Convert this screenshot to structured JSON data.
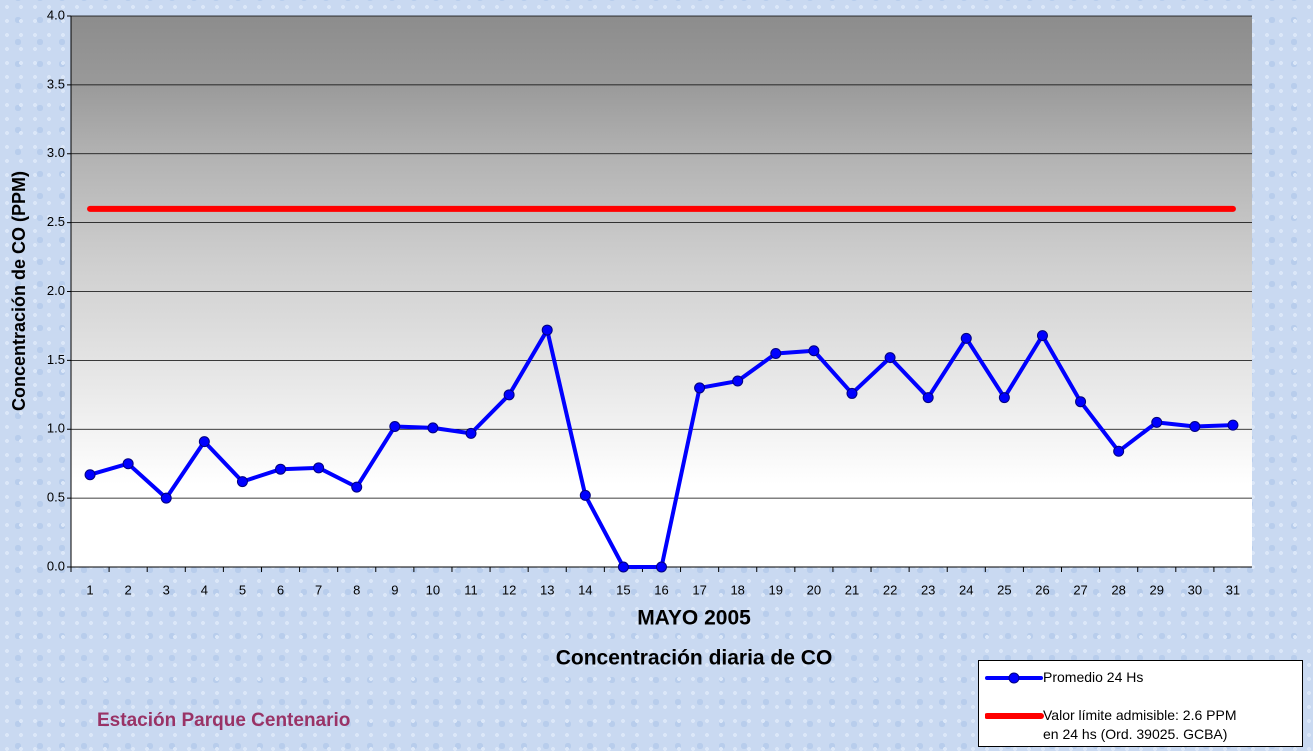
{
  "chart_data": {
    "type": "line",
    "title": "MAYO 2005",
    "subtitle": "Concentración diaria de CO",
    "y_label": "Concentración de CO (PPM)",
    "footer": "Estación Parque Centenario",
    "categories": [
      "1",
      "2",
      "3",
      "4",
      "5",
      "6",
      "7",
      "8",
      "9",
      "10",
      "11",
      "12",
      "13",
      "14",
      "15",
      "16",
      "17",
      "18",
      "19",
      "20",
      "21",
      "22",
      "23",
      "24",
      "25",
      "26",
      "27",
      "28",
      "29",
      "30",
      "31"
    ],
    "series": [
      {
        "name": "Promedio 24 Hs",
        "color": "#0000ff",
        "marker": true,
        "values": [
          0.67,
          0.75,
          0.5,
          0.91,
          0.62,
          0.71,
          0.72,
          0.58,
          1.02,
          1.01,
          0.97,
          1.25,
          1.72,
          0.52,
          0,
          0,
          1.3,
          1.35,
          1.55,
          1.57,
          1.26,
          1.52,
          1.23,
          1.66,
          1.23,
          1.68,
          1.2,
          0.84,
          1.05,
          1.02,
          1.03
        ]
      },
      {
        "name": "Valor límite admisible: 2.6 PPM\nen 24 hs (Ord. 39025. GCBA)",
        "color": "#ff0000",
        "marker": false,
        "values": [
          2.6,
          2.6,
          2.6,
          2.6,
          2.6,
          2.6,
          2.6,
          2.6,
          2.6,
          2.6,
          2.6,
          2.6,
          2.6,
          2.6,
          2.6,
          2.6,
          2.6,
          2.6,
          2.6,
          2.6,
          2.6,
          2.6,
          2.6,
          2.6,
          2.6,
          2.6,
          2.6,
          2.6,
          2.6,
          2.6,
          2.6
        ]
      }
    ],
    "ylim": [
      0,
      4
    ],
    "yticks": [
      {
        "value": 0,
        "label": "0.0"
      },
      0.5,
      {
        "value": 1,
        "label": "1.0"
      },
      1.5,
      {
        "value": 2,
        "label": "2.0"
      },
      2.5,
      {
        "value": 3,
        "label": "3.0"
      },
      3.5,
      {
        "value": 4,
        "label": "4.0"
      }
    ],
    "grid": true,
    "legend": "bottom-right"
  }
}
